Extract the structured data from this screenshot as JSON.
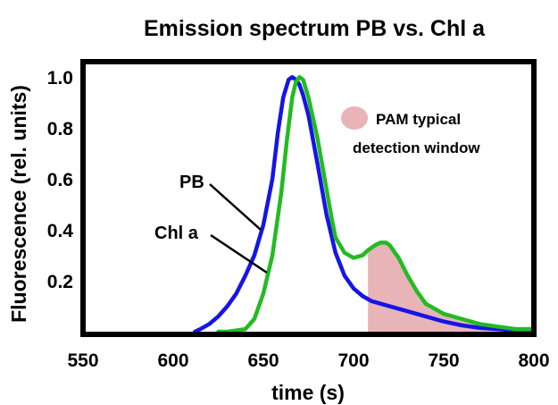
{
  "chart_data": {
    "type": "line",
    "title": "Emission spectrum PB vs. Chl a",
    "xlabel": "time (s)",
    "ylabel": "Fluorescence (rel. units)",
    "xlim": [
      550,
      800
    ],
    "ylim": [
      0,
      1.05
    ],
    "xticks": [
      "550",
      "600",
      "650",
      "700",
      "750",
      "800"
    ],
    "yticks": [
      "0.2",
      "0.4",
      "0.6",
      "0.8",
      "1.0"
    ],
    "grid": false,
    "series": [
      {
        "name": "PB",
        "color": "#1515e6",
        "x": [
          612,
          615,
          620,
          625,
          630,
          635,
          640,
          645,
          650,
          655,
          658,
          661,
          664,
          666,
          668,
          670,
          672,
          675,
          680,
          685,
          690,
          695,
          700,
          705,
          710,
          720,
          730,
          740,
          750,
          760,
          770,
          780,
          790,
          800
        ],
        "y": [
          0.0,
          0.01,
          0.03,
          0.06,
          0.1,
          0.15,
          0.22,
          0.3,
          0.42,
          0.6,
          0.78,
          0.92,
          0.99,
          1.0,
          0.99,
          0.97,
          0.93,
          0.85,
          0.66,
          0.46,
          0.31,
          0.22,
          0.17,
          0.14,
          0.12,
          0.1,
          0.08,
          0.06,
          0.04,
          0.025,
          0.015,
          0.01,
          0.005,
          0.0
        ]
      },
      {
        "name": "Chl a",
        "color": "#22bb22",
        "x": [
          625,
          630,
          635,
          640,
          645,
          650,
          655,
          660,
          663,
          666,
          668,
          670,
          672,
          675,
          680,
          685,
          688,
          690,
          695,
          700,
          705,
          708,
          712,
          715,
          718,
          720,
          725,
          730,
          735,
          740,
          750,
          760,
          770,
          780,
          790,
          800
        ],
        "y": [
          0.0,
          0.0,
          0.005,
          0.01,
          0.05,
          0.15,
          0.3,
          0.55,
          0.75,
          0.92,
          0.98,
          1.0,
          0.99,
          0.92,
          0.76,
          0.56,
          0.44,
          0.37,
          0.31,
          0.29,
          0.3,
          0.32,
          0.34,
          0.35,
          0.35,
          0.34,
          0.29,
          0.22,
          0.16,
          0.11,
          0.07,
          0.05,
          0.03,
          0.02,
          0.01,
          0.01
        ]
      }
    ],
    "shaded_region": {
      "x_start": 708,
      "x_end": 800,
      "follows_series": "Chl a",
      "color": "#e8b4b8",
      "legend_label_line1": "PAM typical",
      "legend_label_line2": "detection window"
    },
    "curve_labels": [
      "PB",
      "Chl a"
    ]
  }
}
